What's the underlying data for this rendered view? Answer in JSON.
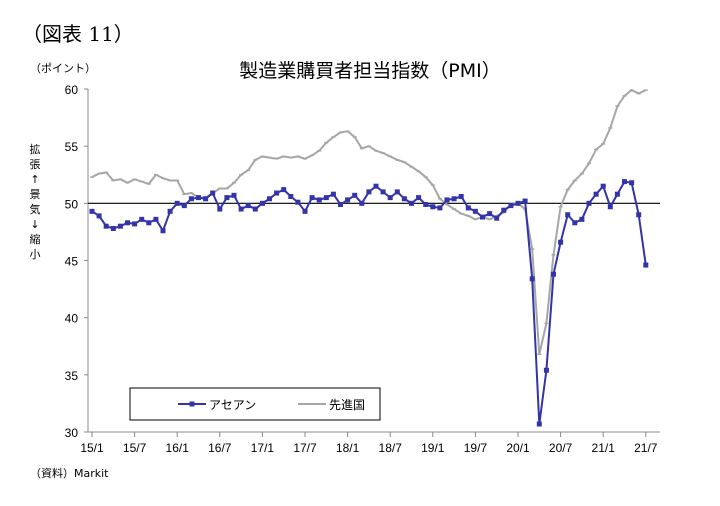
{
  "figure_label": "（図表 11）",
  "source": "（資料）Markit",
  "chart_data": {
    "type": "line",
    "title": "製造業購買者担当指数（PMI）",
    "ylabel_unit": "（ポイント）",
    "ylabel_side": "拡張↑景気↓縮小",
    "ylim": [
      30,
      60
    ],
    "yticks": [
      "30",
      "35",
      "40",
      "45",
      "50",
      "55",
      "60"
    ],
    "xtick_labels": [
      "15/1",
      "15/7",
      "16/1",
      "16/7",
      "17/1",
      "17/7",
      "18/1",
      "18/7",
      "19/1",
      "19/7",
      "20/1",
      "20/7",
      "21/1",
      "21/7"
    ],
    "x_start": "2015/1",
    "x_end": "2021/7",
    "frequency": "monthly",
    "reference_line": 50,
    "grid": false,
    "legend_position": "bottom-left",
    "series": [
      {
        "name": "アセアン",
        "color": "#3333aa",
        "marker": "square",
        "values": [
          49.3,
          48.9,
          48.0,
          47.8,
          48.0,
          48.3,
          48.2,
          48.6,
          48.3,
          48.6,
          47.6,
          49.3,
          50.0,
          49.8,
          50.4,
          50.5,
          50.4,
          50.9,
          49.5,
          50.5,
          50.7,
          49.5,
          49.8,
          49.5,
          50.0,
          50.4,
          50.9,
          51.2,
          50.6,
          50.1,
          49.3,
          50.5,
          50.3,
          50.5,
          50.8,
          49.9,
          50.3,
          50.7,
          50.0,
          51.0,
          51.5,
          51.0,
          50.5,
          51.0,
          50.4,
          50.0,
          50.5,
          49.9,
          49.7,
          49.6,
          50.3,
          50.4,
          50.6,
          49.6,
          49.3,
          48.8,
          49.1,
          48.7,
          49.4,
          49.8,
          50.0,
          50.2,
          43.4,
          30.7,
          35.4,
          43.8,
          46.6,
          49.0,
          48.3,
          48.6,
          50.0,
          50.8,
          51.5,
          49.7,
          50.8,
          51.9,
          51.8,
          49.0,
          44.6
        ]
      },
      {
        "name": "先進国",
        "color": "#a6a6a6",
        "marker": "dash",
        "values": [
          52.3,
          52.6,
          52.7,
          52.0,
          52.1,
          51.8,
          52.1,
          51.9,
          51.7,
          52.5,
          52.2,
          52.0,
          52.0,
          50.8,
          50.9,
          50.5,
          50.5,
          50.9,
          51.3,
          51.3,
          51.8,
          52.5,
          52.9,
          53.8,
          54.1,
          54.0,
          53.9,
          54.1,
          54.0,
          54.1,
          53.9,
          54.2,
          54.6,
          55.3,
          55.8,
          56.2,
          56.3,
          55.8,
          54.8,
          55.0,
          54.6,
          54.4,
          54.1,
          53.8,
          53.6,
          53.2,
          52.8,
          52.3,
          51.6,
          50.4,
          49.9,
          49.5,
          49.1,
          48.9,
          48.6,
          48.8,
          48.6,
          48.9,
          49.2,
          49.9,
          50.0,
          49.5,
          46.0,
          36.8,
          39.5,
          45.5,
          49.7,
          51.2,
          52.0,
          52.6,
          53.5,
          54.7,
          55.2,
          56.6,
          58.5,
          59.4,
          59.9,
          59.6,
          59.9
        ]
      }
    ]
  }
}
